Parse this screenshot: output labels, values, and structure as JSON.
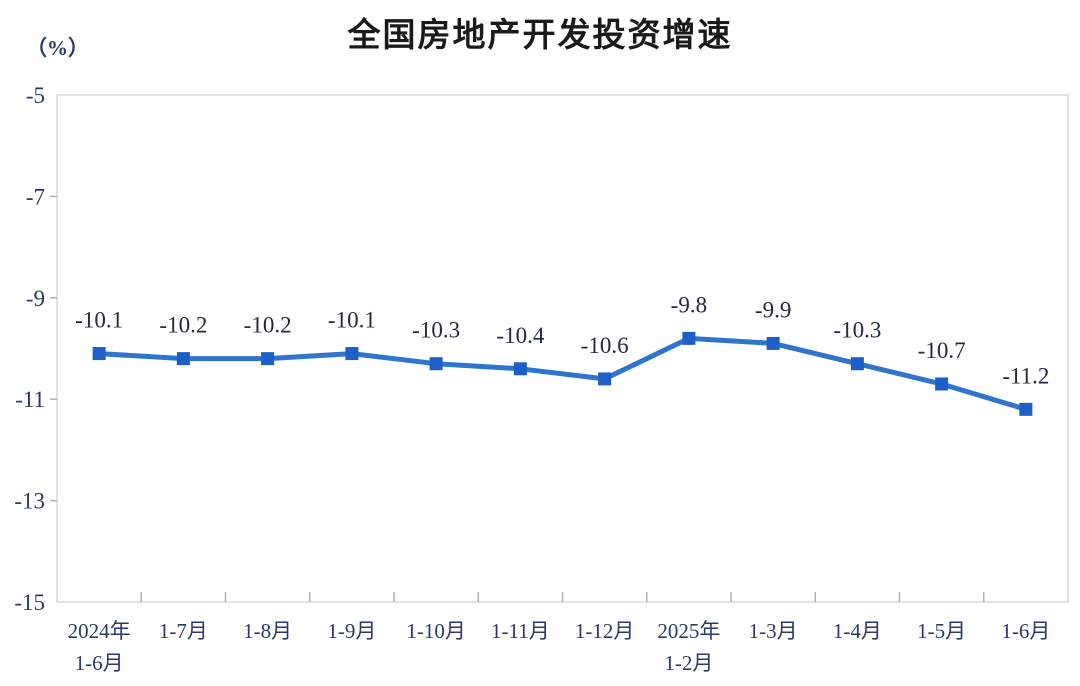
{
  "title": "全国房地产开发投资增速",
  "unit_label": "（%）",
  "colors": {
    "line": "#2f74cd",
    "marker": "#1d5fc6",
    "border": "#d9d9d9",
    "tick": "#b0b0b0",
    "axis_text": "#2b3a66",
    "data_label_text": "#232a3e",
    "title_text": "#1a1a1a",
    "background": "#ffffff"
  },
  "chart_data": {
    "type": "line",
    "title": "全国房地产开发投资增速",
    "unit": "（%）",
    "categories": [
      [
        "2024年",
        "1-6月"
      ],
      [
        "1-7月"
      ],
      [
        "1-8月"
      ],
      [
        "1-9月"
      ],
      [
        "1-10月"
      ],
      [
        "1-11月"
      ],
      [
        "1-12月"
      ],
      [
        "2025年",
        "1-2月"
      ],
      [
        "1-3月"
      ],
      [
        "1-4月"
      ],
      [
        "1-5月"
      ],
      [
        "1-6月"
      ]
    ],
    "values": [
      -10.1,
      -10.2,
      -10.2,
      -10.1,
      -10.3,
      -10.4,
      -10.6,
      -9.8,
      -9.9,
      -10.3,
      -10.7,
      -11.2
    ],
    "data_labels": [
      "-10.1",
      "-10.2",
      "-10.2",
      "-10.1",
      "-10.3",
      "-10.4",
      "-10.6",
      "-9.8",
      "-9.9",
      "-10.3",
      "-10.7",
      "-11.2"
    ],
    "ylim": [
      -15,
      -5
    ],
    "yticks": [
      -5,
      -7,
      -9,
      -11,
      -13,
      -15
    ],
    "ytick_labels": [
      "-5",
      "-7",
      "-9",
      "-11",
      "-13",
      "-15"
    ],
    "xlabel": "",
    "ylabel": "（%）",
    "grid": false,
    "legend": "none",
    "marker": "square",
    "data_label_position": "above"
  }
}
